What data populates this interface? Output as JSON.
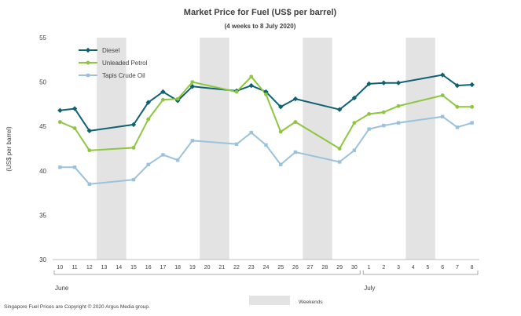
{
  "chart_data": {
    "type": "line",
    "title": "Market Price for Fuel (US$ per barrel)",
    "subtitle": "(4 weeks to 8 July 2020)",
    "ylabel": "(US$ per barrel)",
    "xlabel": "",
    "ylim": [
      30,
      55
    ],
    "yticks": [
      30,
      35,
      40,
      45,
      50,
      55
    ],
    "grid": false,
    "legend_position": "top-left",
    "x_categories": [
      "10",
      "11",
      "12",
      "13",
      "14",
      "15",
      "16",
      "17",
      "18",
      "19",
      "20",
      "21",
      "22",
      "23",
      "24",
      "25",
      "26",
      "27",
      "28",
      "29",
      "30",
      "1",
      "2",
      "3",
      "4",
      "5",
      "6",
      "7",
      "8"
    ],
    "month_labels": [
      {
        "label": "June",
        "start_index": 0,
        "end_index": 20
      },
      {
        "label": "July",
        "start_index": 21,
        "end_index": 28
      }
    ],
    "weekend_ranges": [
      [
        3,
        4
      ],
      [
        10,
        11
      ],
      [
        17,
        18
      ],
      [
        24,
        25
      ]
    ],
    "series": [
      {
        "name": "Diesel",
        "color": "#0e6272",
        "marker": "diamond",
        "values": [
          46.8,
          47.0,
          44.5,
          null,
          null,
          45.2,
          47.7,
          48.9,
          47.9,
          49.5,
          null,
          null,
          49.0,
          49.6,
          48.9,
          47.2,
          48.1,
          null,
          null,
          46.9,
          48.2,
          49.8,
          49.9,
          49.9,
          null,
          null,
          50.8,
          49.6,
          49.7
        ]
      },
      {
        "name": "Unleaded Petrol",
        "color": "#8dc63f",
        "marker": "circle",
        "values": [
          45.5,
          44.8,
          42.3,
          null,
          null,
          42.6,
          45.8,
          48.0,
          48.1,
          50.0,
          null,
          null,
          48.9,
          50.6,
          48.6,
          44.4,
          45.5,
          null,
          null,
          42.5,
          45.4,
          46.4,
          46.6,
          47.3,
          null,
          null,
          48.5,
          47.2,
          47.2
        ]
      },
      {
        "name": "Tapis Crude Oil",
        "color": "#9bc2dc",
        "marker": "square",
        "values": [
          40.4,
          40.4,
          38.5,
          null,
          null,
          39.0,
          40.7,
          41.8,
          41.2,
          43.4,
          null,
          null,
          43.0,
          44.3,
          42.9,
          40.7,
          42.1,
          null,
          null,
          41.0,
          42.3,
          44.7,
          45.1,
          45.4,
          null,
          null,
          46.1,
          44.9,
          45.4
        ]
      }
    ],
    "weekends_legend": "Weekends",
    "weekend_color": "#e3e3e3",
    "footer": "Singapore Fuel Prices are Copyright © 2020 Argus Media group."
  }
}
